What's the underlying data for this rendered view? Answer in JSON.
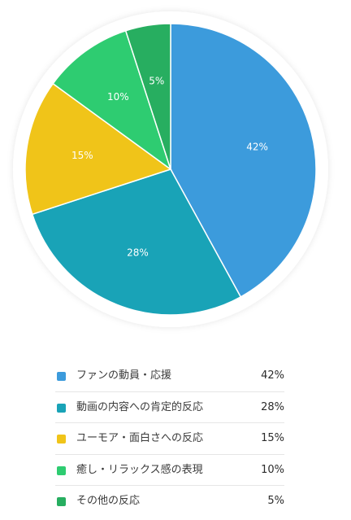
{
  "chart_data": {
    "type": "pie",
    "title": "",
    "slices": [
      {
        "label": "ファンの動員・応援",
        "value": 42,
        "display": "42%",
        "color": "#3c9bdc"
      },
      {
        "label": "動画の内容への肯定的反応",
        "value": 28,
        "display": "28%",
        "color": "#19a3b7"
      },
      {
        "label": "ユーモア・面白さへの反応",
        "value": 15,
        "display": "15%",
        "color": "#f0c419"
      },
      {
        "label": "癒し・リラックス感の表現",
        "value": 10,
        "display": "10%",
        "color": "#2ecc71"
      },
      {
        "label": "その他の反応",
        "value": 5,
        "display": "5%",
        "color": "#27ae60"
      }
    ],
    "start_angle": "top",
    "direction": "clockwise",
    "legend_position": "bottom"
  },
  "legend": {
    "items": [
      {
        "label": "ファンの動員・応援",
        "pct": "42%"
      },
      {
        "label": "動画の内容への肯定的反応",
        "pct": "28%"
      },
      {
        "label": "ユーモア・面白さへの反応",
        "pct": "15%"
      },
      {
        "label": "癒し・リラックス感の表現",
        "pct": "10%"
      },
      {
        "label": "その他の反応",
        "pct": "5%"
      }
    ]
  }
}
